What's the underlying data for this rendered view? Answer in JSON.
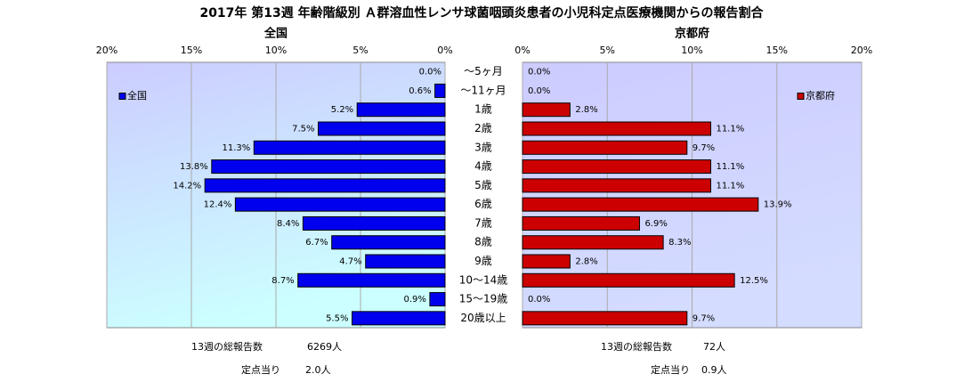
{
  "title": "2017年 第13週 年齢階級別 Ａ群溶血性レンサ球菌咽頭炎患者の小児科定点医療機関からの報告割合",
  "chart_data": [
    {
      "type": "bar",
      "orientation": "horizontal",
      "x_reversed": true,
      "subtitle": "全国",
      "categories": [
        "～5ヶ月",
        "～11ヶ月",
        "1歳",
        "2歳",
        "3歳",
        "4歳",
        "5歳",
        "6歳",
        "7歳",
        "8歳",
        "9歳",
        "10～14歳",
        "15～19歳",
        "20歳以上"
      ],
      "series": [
        {
          "name": "全国",
          "color": "#0000ee",
          "values": [
            0.0,
            0.6,
            5.2,
            7.5,
            11.3,
            13.8,
            14.2,
            12.4,
            8.4,
            6.7,
            4.7,
            8.7,
            0.9,
            5.5
          ],
          "value_labels": [
            "0.0%",
            "0.6%",
            "5.2%",
            "7.5%",
            "11.3%",
            "13.8%",
            "14.2%",
            "12.4%",
            "8.4%",
            "6.7%",
            "4.7%",
            "8.7%",
            "0.9%",
            "5.5%"
          ]
        }
      ],
      "xlim": [
        0,
        20
      ],
      "xticks": [
        {
          "value": 0,
          "label": "0%"
        },
        {
          "value": 5,
          "label": "5%"
        },
        {
          "value": 10,
          "label": "10%"
        },
        {
          "value": 15,
          "label": "15%"
        },
        {
          "value": 20,
          "label": "20%"
        }
      ],
      "grid": true,
      "legend": "top-left",
      "notes": [
        {
          "label": "13週の総報告数",
          "value": "6269人"
        },
        {
          "label": "定点当り",
          "value": "2.0人"
        }
      ]
    },
    {
      "type": "bar",
      "orientation": "horizontal",
      "x_reversed": false,
      "subtitle": "京都府",
      "series": [
        {
          "name": "京都府",
          "color": "#cc0000",
          "values": [
            0.0,
            0.0,
            2.8,
            11.1,
            9.7,
            11.1,
            11.1,
            13.9,
            6.9,
            8.3,
            2.8,
            12.5,
            0.0,
            9.7
          ],
          "value_labels": [
            "0.0%",
            "0.0%",
            "2.8%",
            "11.1%",
            "9.7%",
            "11.1%",
            "11.1%",
            "13.9%",
            "6.9%",
            "8.3%",
            "2.8%",
            "12.5%",
            "0.0%",
            "9.7%"
          ]
        }
      ],
      "xlim": [
        0,
        20
      ],
      "xticks": [
        {
          "value": 0,
          "label": "0%"
        },
        {
          "value": 5,
          "label": "5%"
        },
        {
          "value": 10,
          "label": "10%"
        },
        {
          "value": 15,
          "label": "15%"
        },
        {
          "value": 20,
          "label": "20%"
        }
      ],
      "grid": true,
      "legend": "top-right",
      "notes": [
        {
          "label": "13週の総報告数",
          "value": "72人"
        },
        {
          "label": "定点当り",
          "value": "0.9人"
        }
      ]
    }
  ]
}
